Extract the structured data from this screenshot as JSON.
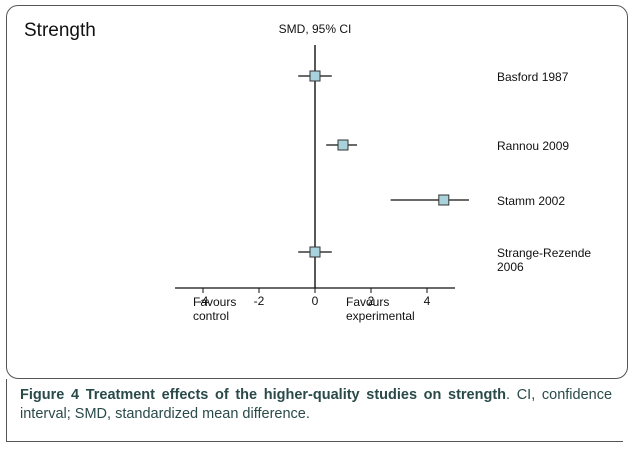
{
  "chart_data": {
    "type": "forest",
    "title": "Strength",
    "x_label": "SMD, 95% CI",
    "studies": [
      "Basford 1987",
      "Rannou 2009",
      "Stamm 2002",
      "Strange-Rezende 2006"
    ],
    "values": [
      0,
      1.0,
      4.6,
      0
    ],
    "ci_lower": [
      -0.6,
      0.4,
      2.7,
      -0.6
    ],
    "ci_upper": [
      0.6,
      1.5,
      5.5,
      0.6
    ],
    "xlim": [
      -5,
      5
    ],
    "xticks": [
      -4,
      -2,
      0,
      2,
      4
    ],
    "left_note": "Favours control",
    "right_note": "Favours experimental",
    "color": "#a8d3dc"
  },
  "caption": {
    "label": "Figure 4",
    "title": "Treatment effects of the higher-quality studies on strength",
    "text": ". CI, confidence interval; SMD, standardized mean difference."
  }
}
